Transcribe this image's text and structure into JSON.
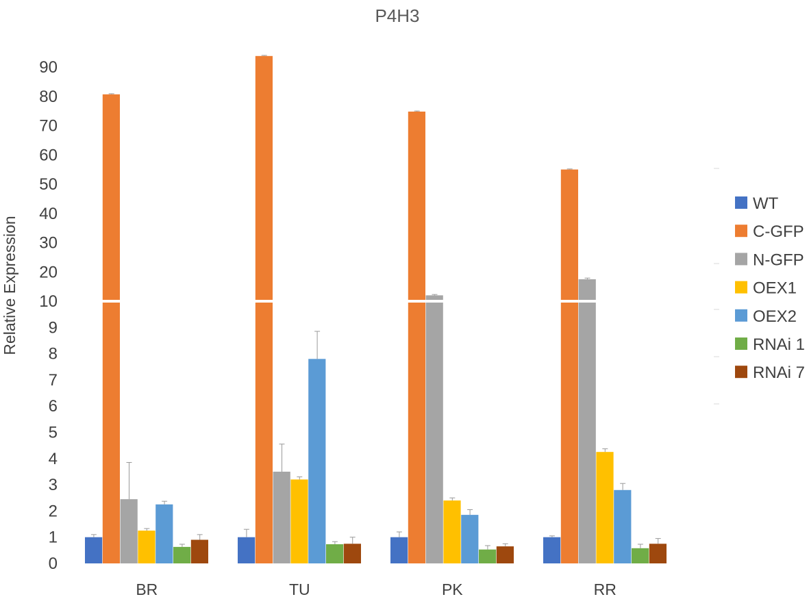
{
  "chart_data": {
    "type": "bar",
    "title": "P4H3",
    "ylabel": "Relative Expression",
    "xlabel": "",
    "axis_break": true,
    "lower_range": [
      0,
      10
    ],
    "upper_range": [
      10,
      90
    ],
    "lower_ticks": [
      "0",
      "1",
      "2",
      "3",
      "4",
      "5",
      "6",
      "7",
      "8",
      "9",
      "10"
    ],
    "upper_ticks": [
      "20",
      "30",
      "40",
      "50",
      "60",
      "70",
      "80",
      "90"
    ],
    "categories": [
      "BR",
      "TU",
      "PK",
      "RR"
    ],
    "legend_position": "right",
    "series": [
      {
        "name": "WT",
        "color": "#4472C4",
        "values": [
          1.0,
          1.0,
          1.0,
          1.0
        ],
        "errors": [
          0.1,
          0.3,
          0.2,
          0.05
        ]
      },
      {
        "name": "C-GFP",
        "color": "#ED7D31",
        "values": [
          80.7,
          93.8,
          74.8,
          55.0
        ],
        "errors": [
          0.2,
          0.2,
          0.2,
          0.2
        ]
      },
      {
        "name": "N-GFP",
        "color": "#A5A5A5",
        "values": [
          2.45,
          3.5,
          12.0,
          17.5
        ],
        "errors": [
          1.4,
          1.05,
          0.3,
          0.4
        ]
      },
      {
        "name": "OEX1",
        "color": "#FFC000",
        "values": [
          1.25,
          3.2,
          2.4,
          4.25
        ],
        "errors": [
          0.08,
          0.1,
          0.1,
          0.12
        ]
      },
      {
        "name": "OEX2",
        "color": "#5B9BD5",
        "values": [
          2.25,
          7.8,
          1.85,
          2.8
        ],
        "errors": [
          0.12,
          1.05,
          0.2,
          0.25
        ]
      },
      {
        "name": "RNAi 1",
        "color": "#70AD47",
        "values": [
          0.63,
          0.73,
          0.53,
          0.58
        ],
        "errors": [
          0.1,
          0.1,
          0.15,
          0.15
        ]
      },
      {
        "name": "RNAi 7",
        "color": "#9E480E",
        "values": [
          0.9,
          0.75,
          0.65,
          0.75
        ],
        "errors": [
          0.2,
          0.25,
          0.1,
          0.2
        ]
      }
    ]
  }
}
